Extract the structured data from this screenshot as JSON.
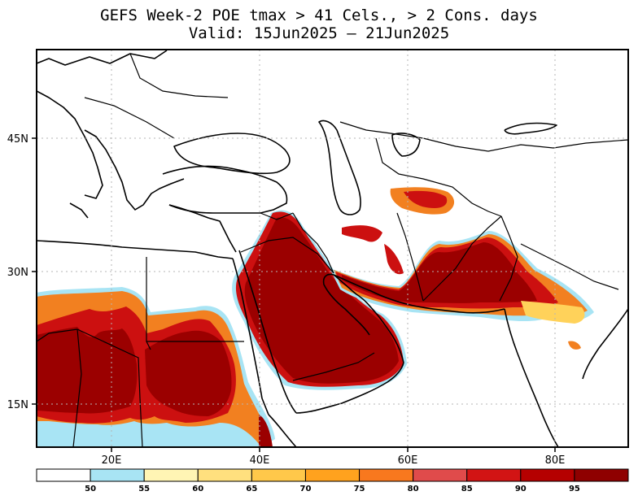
{
  "title": {
    "line1": "GEFS Week-2 POE tmax > 41 Cels., > 2 Cons. days",
    "line2": "Valid: 15Jun2025 — 21Jun2025"
  },
  "axes": {
    "lon_ticks": [
      "20E",
      "40E",
      "60E",
      "80E"
    ],
    "lat_ticks": [
      "45N",
      "30N",
      "15N"
    ]
  },
  "colorbar": {
    "labels": [
      "50",
      "55",
      "60",
      "65",
      "70",
      "75",
      "80",
      "85",
      "90",
      "95"
    ],
    "colors": [
      "#ffffff",
      "#a8e4f4",
      "#fff5b4",
      "#ffe07e",
      "#ffc84a",
      "#ffa21e",
      "#f8781e",
      "#e04b4b",
      "#d21414",
      "#b50000",
      "#8f0000"
    ]
  },
  "colors": {
    "deep_red": "#9b0000",
    "red": "#cc1010",
    "orange": "#f28020",
    "yellow": "#ffd25a",
    "cyan": "#a8e4f4"
  }
}
